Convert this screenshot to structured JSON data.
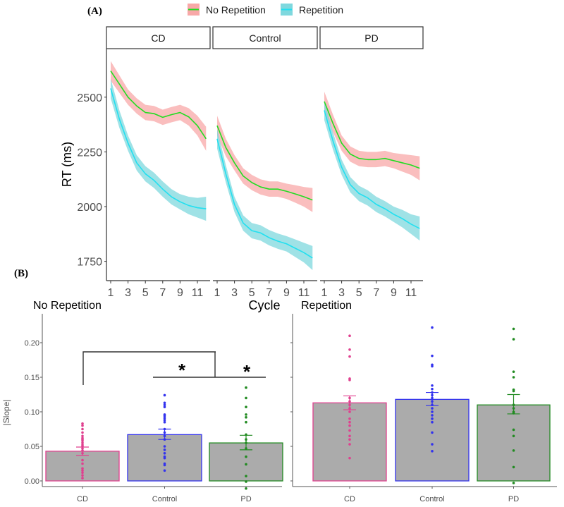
{
  "chart_data": [
    {
      "panel_label": "(A)",
      "type": "line",
      "xlabel": "Cycle",
      "ylabel": "RT (ms)",
      "ylim": [
        1660,
        2730
      ],
      "yticks": [
        1750,
        2000,
        2250,
        2500
      ],
      "xticks": [
        1,
        3,
        5,
        7,
        9,
        11
      ],
      "x": [
        1,
        2,
        3,
        4,
        5,
        6,
        7,
        8,
        9,
        10,
        11,
        12
      ],
      "legend": {
        "position": "top",
        "entries": [
          "No Repetition",
          "Repetition"
        ]
      },
      "colors": {
        "No Repetition": {
          "line": "#22dd22",
          "band": "#f8a8a8"
        },
        "Repetition": {
          "line": "#22e0f0",
          "band": "#7fd8de"
        }
      },
      "facets": [
        {
          "name": "CD",
          "series": [
            {
              "name": "No Repetition",
              "values": [
                2620,
                2560,
                2500,
                2460,
                2430,
                2425,
                2408,
                2420,
                2430,
                2410,
                2370,
                2310
              ],
              "ci": [
                45,
                40,
                35,
                35,
                35,
                35,
                35,
                35,
                35,
                40,
                45,
                55
              ]
            },
            {
              "name": "Repetition",
              "values": [
                2540,
                2400,
                2290,
                2200,
                2150,
                2120,
                2080,
                2045,
                2022,
                2005,
                1995,
                1990
              ],
              "ci": [
                45,
                40,
                35,
                35,
                35,
                35,
                35,
                35,
                35,
                40,
                45,
                55
              ]
            }
          ]
        },
        {
          "name": "Control",
          "series": [
            {
              "name": "No Repetition",
              "values": [
                2370,
                2270,
                2200,
                2140,
                2110,
                2090,
                2080,
                2080,
                2070,
                2058,
                2045,
                2030
              ],
              "ci": [
                45,
                40,
                35,
                35,
                35,
                35,
                35,
                35,
                35,
                40,
                45,
                55
              ]
            },
            {
              "name": "Repetition",
              "values": [
                2310,
                2150,
                2010,
                1925,
                1890,
                1880,
                1858,
                1842,
                1830,
                1810,
                1790,
                1765
              ],
              "ci": [
                45,
                40,
                35,
                35,
                35,
                35,
                35,
                35,
                35,
                40,
                45,
                55
              ]
            }
          ]
        },
        {
          "name": "PD",
          "series": [
            {
              "name": "No Repetition",
              "values": [
                2480,
                2380,
                2290,
                2240,
                2220,
                2215,
                2215,
                2220,
                2210,
                2200,
                2190,
                2175
              ],
              "ci": [
                45,
                40,
                35,
                35,
                35,
                35,
                35,
                35,
                35,
                40,
                45,
                55
              ]
            },
            {
              "name": "Repetition",
              "values": [
                2440,
                2300,
                2180,
                2100,
                2060,
                2040,
                2010,
                1990,
                1965,
                1945,
                1920,
                1900
              ],
              "ci": [
                45,
                40,
                35,
                35,
                35,
                35,
                35,
                35,
                35,
                40,
                45,
                55
              ]
            }
          ]
        }
      ]
    },
    {
      "panel_label": "(B)",
      "type": "bar",
      "ylabel": "|Slope|",
      "ylim": [
        -0.008,
        0.24
      ],
      "yticks": [
        "0.00",
        "0.05",
        "0.10",
        "0.15",
        "0.20"
      ],
      "categories": [
        "CD",
        "Control",
        "PD"
      ],
      "category_colors": {
        "CD": "#e0408f",
        "Control": "#3333ee",
        "PD": "#228b22"
      },
      "bar_fill": "#ababab",
      "facets": [
        {
          "name": "No Repetition",
          "values": [
            0.043,
            0.067,
            0.055
          ],
          "se_low": [
            0.037,
            0.06,
            0.045
          ],
          "se_high": [
            0.049,
            0.075,
            0.066
          ],
          "points": [
            [
              0.083,
              0.08,
              0.075,
              0.07,
              0.065,
              0.062,
              0.06,
              0.058,
              0.055,
              0.052,
              0.05,
              0.047,
              0.044,
              0.04,
              0.03,
              0.025,
              0.018,
              0.015,
              0.012,
              0.008,
              0.004
            ],
            [
              0.124,
              0.113,
              0.11,
              0.107,
              0.096,
              0.094,
              0.091,
              0.088,
              0.085,
              0.075,
              0.07,
              0.065,
              0.06,
              0.05,
              0.045,
              0.04,
              0.035,
              0.033,
              0.025,
              0.023,
              0.015
            ],
            [
              0.135,
              0.12,
              0.107,
              0.096,
              0.092,
              0.085,
              0.067,
              0.06,
              0.055,
              0.047,
              0.035,
              0.024,
              0.007,
              -0.001,
              -0.011
            ]
          ],
          "significance": [
            {
              "pair": [
                "CD",
                "Control-PD"
              ],
              "label": "*"
            },
            {
              "pair": [
                "Control",
                "PD"
              ],
              "label": "*"
            }
          ]
        },
        {
          "name": "Repetition",
          "values": [
            0.113,
            0.118,
            0.11
          ],
          "se_low": [
            0.103,
            0.109,
            0.097
          ],
          "se_high": [
            0.123,
            0.128,
            0.125
          ],
          "points": [
            [
              0.21,
              0.19,
              0.18,
              0.148,
              0.146,
              0.12,
              0.115,
              0.11,
              0.105,
              0.1,
              0.09,
              0.085,
              0.08,
              0.073,
              0.065,
              0.06,
              0.053,
              0.033
            ],
            [
              0.222,
              0.181,
              0.168,
              0.166,
              0.138,
              0.133,
              0.128,
              0.124,
              0.12,
              0.115,
              0.11,
              0.105,
              0.1,
              0.095,
              0.09,
              0.085,
              0.07,
              0.053,
              0.043
            ],
            [
              0.22,
              0.205,
              0.158,
              0.15,
              0.132,
              0.13,
              0.11,
              0.105,
              0.1,
              0.098,
              0.074,
              0.065,
              0.044,
              0.02,
              -0.003
            ]
          ]
        }
      ]
    }
  ]
}
